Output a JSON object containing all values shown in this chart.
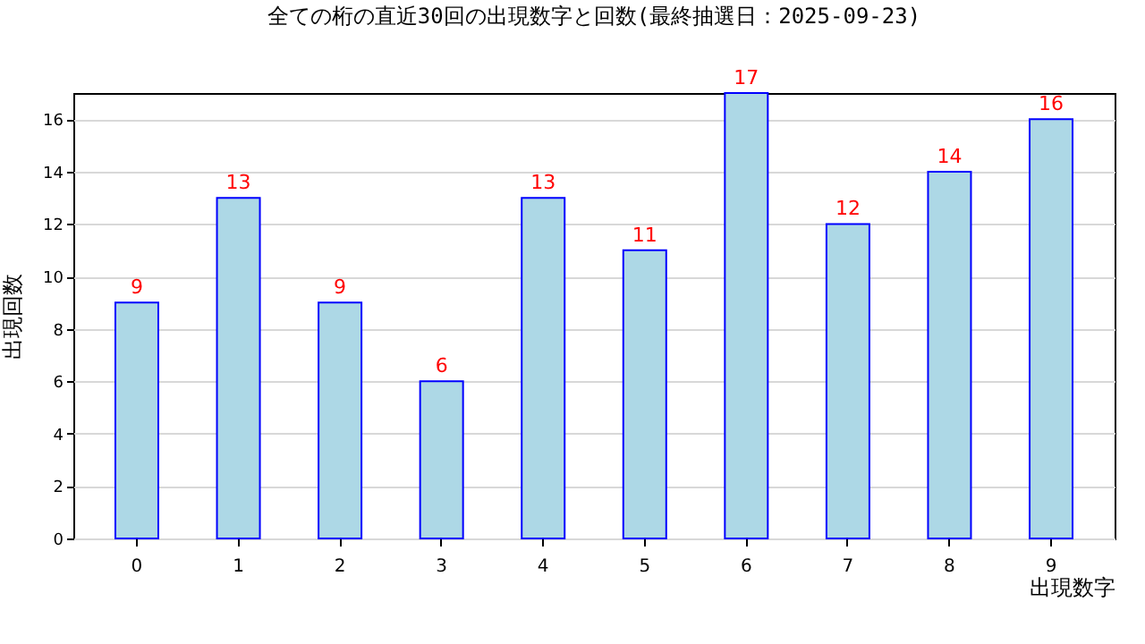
{
  "chart_data": {
    "type": "bar",
    "title": "全ての桁の直近30回の出現数字と回数(最終抽選日：2025-09-23)",
    "xlabel": "出現数字",
    "ylabel": "出現回数",
    "categories": [
      "0",
      "1",
      "2",
      "3",
      "4",
      "5",
      "6",
      "7",
      "8",
      "9"
    ],
    "values": [
      9,
      13,
      9,
      6,
      13,
      11,
      17,
      12,
      14,
      16
    ],
    "color": "#add8e6",
    "ylim": [
      0,
      17
    ],
    "yticks": [
      0,
      2,
      4,
      6,
      8,
      10,
      12,
      14,
      16
    ],
    "grid": "y",
    "data_labels": true
  }
}
